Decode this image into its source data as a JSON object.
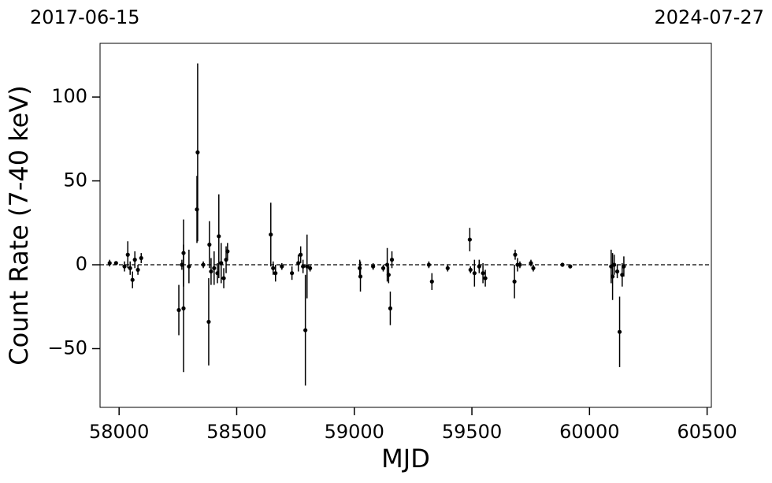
{
  "chart_data": {
    "type": "errorbar",
    "date_labels": {
      "left": "2017-06-15",
      "right": "2024-07-27"
    },
    "x_label": "MJD",
    "y_label": "Count Rate (7-40 keV)",
    "xlim": [
      57919,
      60518
    ],
    "ylim": [
      -85,
      132
    ],
    "xticks": [
      58000,
      58500,
      59000,
      59500,
      60000,
      60500
    ],
    "yticks": [
      {
        "value": -50,
        "label": "−50"
      },
      0,
      50,
      100
    ],
    "reference_line": 0,
    "color": "#000000",
    "x": [
      57960,
      57987,
      58023,
      58037,
      58047,
      58057,
      58067,
      58080,
      58094,
      58254,
      58267,
      58274,
      58274,
      58297,
      58331,
      58334,
      58358,
      58381,
      58384,
      58391,
      58404,
      58418,
      58424,
      58434,
      58445,
      58455,
      58461,
      58645,
      58655,
      58665,
      58692,
      58735,
      58762,
      58772,
      58782,
      58792,
      58799,
      58812,
      59023,
      59026,
      59080,
      59123,
      59140,
      59146,
      59153,
      59160,
      59317,
      59330,
      59397,
      59491,
      59494,
      59511,
      59531,
      59547,
      59557,
      59681,
      59684,
      59694,
      59704,
      59751,
      59761,
      59885,
      59918,
      60092,
      60098,
      60105,
      60118,
      60128,
      60139,
      60146
    ],
    "values": [
      1,
      1,
      -1,
      6,
      -2,
      -9,
      3,
      -3,
      4,
      -27,
      0,
      7,
      -26,
      -1,
      33,
      67,
      0,
      -34,
      12,
      -4,
      -2,
      -5,
      17,
      1,
      -8,
      3,
      8,
      18,
      -2,
      -5,
      -1,
      -5,
      1,
      6,
      -1,
      -39,
      -1,
      -2,
      -2,
      -7,
      -1,
      -2,
      0,
      -6,
      -26,
      3,
      0,
      -10,
      -2,
      15,
      -3,
      -5,
      -1,
      -5,
      -8,
      -10,
      6,
      0,
      0,
      1,
      -2,
      0,
      -1,
      -1,
      -7,
      0,
      -4,
      -40,
      -6,
      -1
    ],
    "errors": [
      2,
      1,
      3,
      8,
      4,
      5,
      5,
      3,
      3,
      15,
      3,
      20,
      38,
      10,
      20,
      53,
      2,
      26,
      14,
      8,
      10,
      6,
      25,
      12,
      6,
      8,
      5,
      19,
      4,
      5,
      2,
      4,
      5,
      5,
      4,
      33,
      19,
      2,
      5,
      9,
      2,
      2,
      10,
      5,
      10,
      5,
      2,
      5,
      2,
      7,
      2,
      8,
      4,
      6,
      5,
      10,
      3,
      4,
      2,
      2,
      2,
      1,
      1,
      10,
      14,
      6,
      4,
      21,
      7,
      6
    ]
  }
}
